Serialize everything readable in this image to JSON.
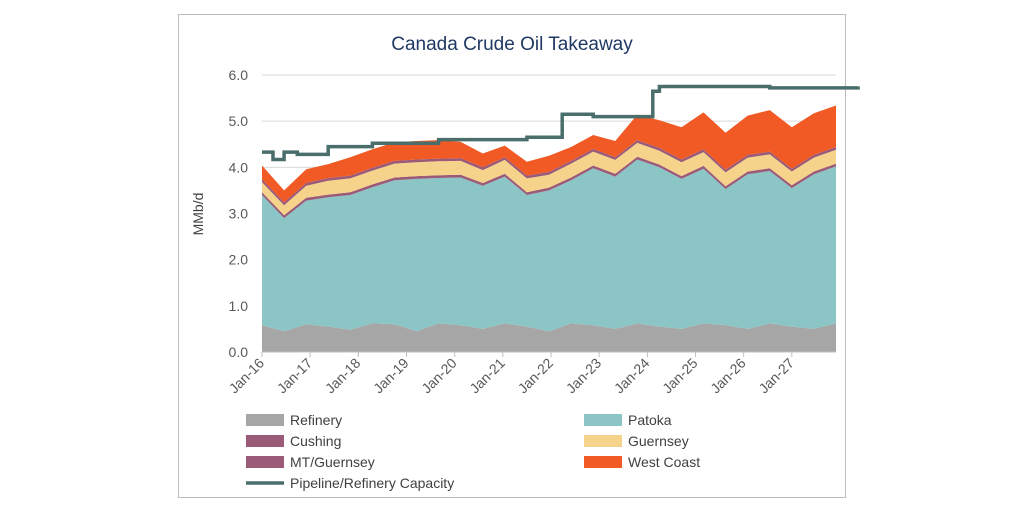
{
  "chart_data": {
    "type": "area",
    "title": "Canada Crude Oil Takeaway",
    "ylabel": "MMb/d",
    "xlabel": "",
    "ylim": [
      0,
      6
    ],
    "yticks": [
      "0.0",
      "1.0",
      "2.0",
      "3.0",
      "4.0",
      "5.0",
      "6.0"
    ],
    "x_start": "Jan-16",
    "x_end": "Dec-27",
    "x_tick_labels": [
      "Jan-16",
      "Jan-17",
      "Jan-18",
      "Jan-19",
      "Jan-20",
      "Jan-21",
      "Jan-22",
      "Jan-23",
      "Jan-24",
      "Jan-25",
      "Jan-26",
      "Jan-27"
    ],
    "grid": "horizontal",
    "legend_position": "bottom",
    "stacked": true,
    "series": [
      {
        "name": "Refinery",
        "color": "#a6a6a6",
        "kind": "area",
        "values": [
          0.58,
          0.45,
          0.6,
          0.55,
          0.48,
          0.62,
          0.6,
          0.45,
          0.62,
          0.58,
          0.5,
          0.62,
          0.55,
          0.45,
          0.62,
          0.58,
          0.5,
          0.62,
          0.55,
          0.5,
          0.62,
          0.58,
          0.5,
          0.62,
          0.55,
          0.5,
          0.62
        ]
      },
      {
        "name": "Patoka",
        "color": "#8cc5c6",
        "kind": "area",
        "values": [
          2.82,
          2.45,
          2.68,
          2.8,
          2.92,
          2.95,
          3.12,
          3.3,
          3.15,
          3.2,
          3.1,
          3.18,
          2.85,
          3.05,
          3.1,
          3.4,
          3.3,
          3.55,
          3.45,
          3.25,
          3.35,
          2.95,
          3.35,
          3.3,
          3.0,
          3.35,
          3.4
        ]
      },
      {
        "name": "Cushing",
        "color": "#9b5a78",
        "kind": "area",
        "values": [
          0.06,
          0.06,
          0.06,
          0.06,
          0.06,
          0.06,
          0.06,
          0.06,
          0.06,
          0.06,
          0.06,
          0.06,
          0.06,
          0.06,
          0.06,
          0.06,
          0.06,
          0.06,
          0.06,
          0.06,
          0.06,
          0.06,
          0.06,
          0.06,
          0.06,
          0.06,
          0.06
        ]
      },
      {
        "name": "Guernsey",
        "color": "#f6d38b",
        "kind": "area",
        "values": [
          0.22,
          0.22,
          0.26,
          0.3,
          0.3,
          0.3,
          0.3,
          0.3,
          0.3,
          0.3,
          0.28,
          0.3,
          0.3,
          0.28,
          0.3,
          0.3,
          0.3,
          0.3,
          0.3,
          0.3,
          0.3,
          0.3,
          0.3,
          0.3,
          0.3,
          0.3,
          0.3
        ]
      },
      {
        "name": "MT/Guernsey",
        "color": "#9b5a78",
        "kind": "area",
        "values": [
          0.06,
          0.06,
          0.06,
          0.06,
          0.06,
          0.06,
          0.06,
          0.06,
          0.06,
          0.06,
          0.06,
          0.06,
          0.06,
          0.06,
          0.06,
          0.06,
          0.06,
          0.06,
          0.06,
          0.06,
          0.06,
          0.06,
          0.06,
          0.06,
          0.06,
          0.06,
          0.06
        ]
      },
      {
        "name": "West Coast",
        "color": "#f15a24",
        "kind": "area",
        "values": [
          0.3,
          0.26,
          0.3,
          0.3,
          0.4,
          0.4,
          0.4,
          0.4,
          0.4,
          0.35,
          0.3,
          0.25,
          0.3,
          0.35,
          0.3,
          0.3,
          0.35,
          0.55,
          0.6,
          0.7,
          0.8,
          0.8,
          0.85,
          0.9,
          0.9,
          0.9,
          0.9
        ]
      },
      {
        "name": "Pipeline/Refinery Capacity",
        "color": "#4a6e6b",
        "kind": "line",
        "steps": [
          [
            0,
            4.33
          ],
          [
            0.5,
            4.17
          ],
          [
            1,
            4.33
          ],
          [
            1.6,
            4.28
          ],
          [
            3,
            4.45
          ],
          [
            4,
            4.45
          ],
          [
            5,
            4.52
          ],
          [
            8,
            4.6
          ],
          [
            11,
            4.6
          ],
          [
            12,
            4.65
          ],
          [
            13.4,
            4.65
          ],
          [
            13.6,
            5.15
          ],
          [
            15,
            5.1
          ],
          [
            17.5,
            5.1
          ],
          [
            17.7,
            5.65
          ],
          [
            18,
            5.75
          ],
          [
            23,
            5.72
          ],
          [
            27,
            5.75
          ]
        ]
      }
    ],
    "legend": [
      {
        "label": "Refinery",
        "color": "#a6a6a6",
        "kind": "box"
      },
      {
        "label": "Patoka",
        "color": "#8cc5c6",
        "kind": "box"
      },
      {
        "label": "Cushing",
        "color": "#9b5a78",
        "kind": "box"
      },
      {
        "label": "Guernsey",
        "color": "#f6d38b",
        "kind": "box"
      },
      {
        "label": "MT/Guernsey",
        "color": "#9b5a78",
        "kind": "box"
      },
      {
        "label": "West Coast",
        "color": "#f15a24",
        "kind": "box"
      },
      {
        "label": "Pipeline/Refinery Capacity",
        "color": "#4a6e6b",
        "kind": "line"
      }
    ]
  }
}
